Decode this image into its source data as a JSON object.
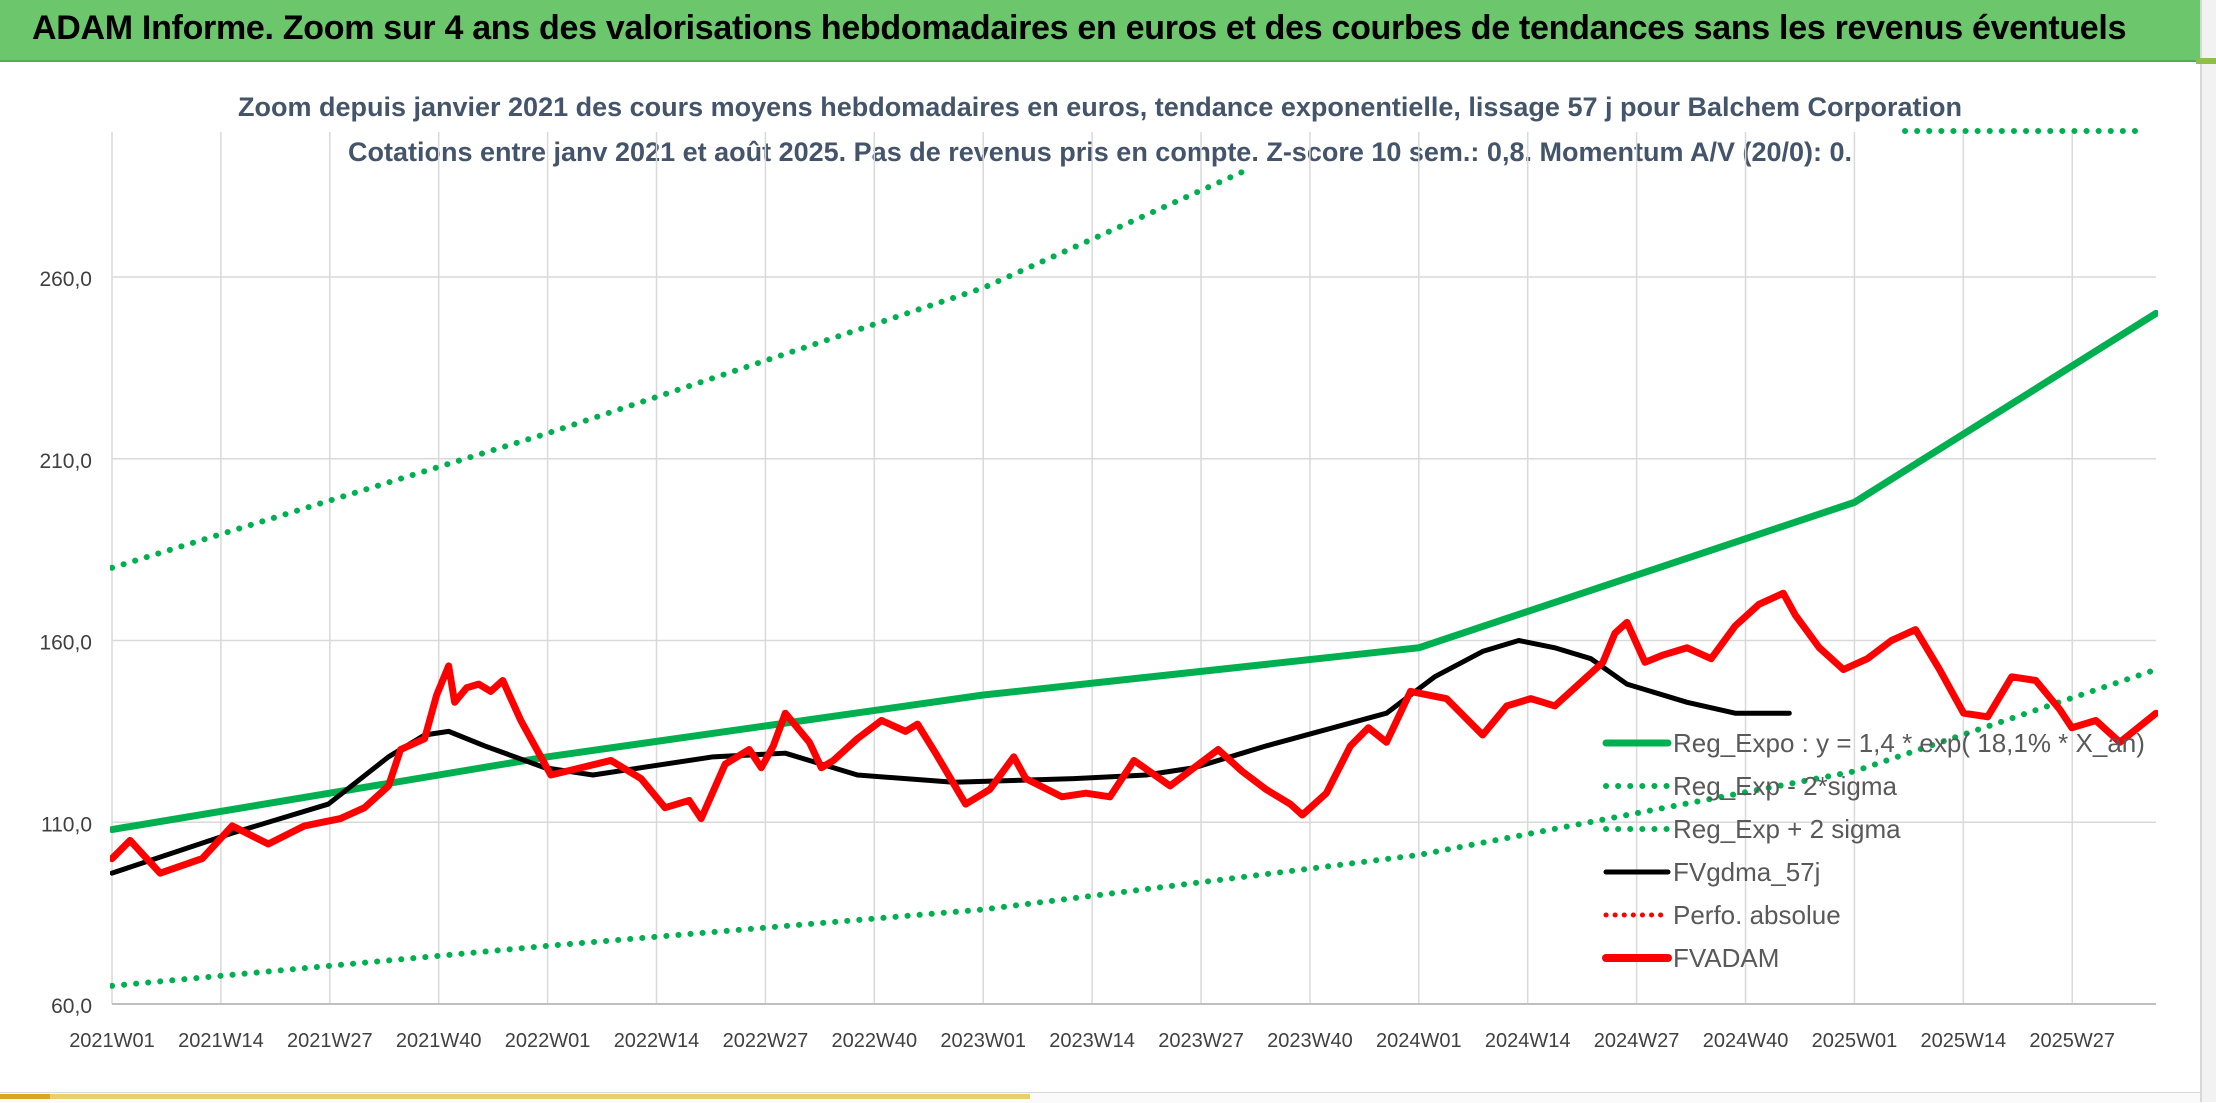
{
  "banner": {
    "title": "ADAM Informe. Zoom sur 4 ans des valorisations hebdomadaires en euros et des courbes de tendances sans les revenus éventuels"
  },
  "colors": {
    "banner": "#6cc66c",
    "trend": "#00b050",
    "smoothed": "#000000",
    "price": "#ff0000",
    "perf": "#ff0000"
  },
  "chart_data": {
    "type": "line",
    "title": "Zoom depuis janvier 2021 des cours moyens hebdomadaires en euros, tendance exponentielle, lissage 57 j pour Balchem Corporation",
    "subtitle": "Cotations entre janv 2021 et août 2025. Pas de revenus pris en compte. Z-score 10 sem.: 0,8. Momentum A/V (20/0): 0.",
    "xlabel": "",
    "ylabel": "",
    "ylim": [
      60,
      280
    ],
    "y_ticks": [
      "60,0",
      "110,0",
      "160,0",
      "210,0",
      "260,0"
    ],
    "x_ticks": [
      "2021W01",
      "2021W14",
      "2021W27",
      "2021W40",
      "2022W01",
      "2022W14",
      "2022W27",
      "2022W40",
      "2023W01",
      "2023W14",
      "2023W27",
      "2023W40",
      "2024W01",
      "2024W14",
      "2024W27",
      "2024W40",
      "2025W01",
      "2025W14",
      "2025W27"
    ],
    "n_weeks": 245,
    "grid": true,
    "legend_position": "right",
    "legend": [
      "Reg_Expo : y = 1,4 * exp( 18,1% *  X_an)",
      "Reg_Exp - 2*sigma",
      "Reg_Exp + 2 sigma",
      "FVgdma_57j",
      "Perfo. absolue",
      "FVADAM"
    ],
    "series": [
      {
        "name": "Reg_Expo : y = 1,4 * exp( 18,1% *  X_an)",
        "style": "solid-green",
        "points": [
          [
            0,
            108
          ],
          [
            52,
            128
          ],
          [
            104,
            145
          ],
          [
            156,
            158
          ],
          [
            208,
            198
          ],
          [
            244,
            250
          ]
        ]
      },
      {
        "name": "Reg_Exp - 2*sigma",
        "style": "dotted-green",
        "points": [
          [
            0,
            65
          ],
          [
            52,
            76
          ],
          [
            104,
            86
          ],
          [
            156,
            101
          ],
          [
            208,
            124
          ],
          [
            244,
            152
          ]
        ]
      },
      {
        "name": "Reg_Exp + 2 sigma",
        "style": "dotted-green",
        "points": [
          [
            0,
            180
          ],
          [
            52,
            217
          ],
          [
            104,
            257
          ],
          [
            136,
            290
          ]
        ]
      },
      {
        "name": "FVgdma_57j",
        "style": "solid-black",
        "points": [
          [
            0,
            96
          ],
          [
            20,
            107
          ],
          [
            36,
            115
          ],
          [
            46,
            128
          ],
          [
            52,
            134
          ],
          [
            56,
            135
          ],
          [
            62,
            131
          ],
          [
            72,
            125
          ],
          [
            80,
            123
          ],
          [
            100,
            128
          ],
          [
            112,
            129
          ],
          [
            118,
            126
          ],
          [
            124,
            123
          ],
          [
            140,
            121
          ],
          [
            160,
            122
          ],
          [
            172,
            123
          ],
          [
            180,
            125
          ],
          [
            188,
            129
          ],
          [
            192,
            131
          ],
          [
            212,
            140
          ],
          [
            220,
            150
          ],
          [
            228,
            157
          ],
          [
            234,
            160
          ],
          [
            240,
            158
          ],
          [
            246,
            155
          ],
          [
            252,
            148
          ],
          [
            262,
            143
          ],
          [
            270,
            140
          ],
          [
            279,
            140
          ]
        ]
      },
      {
        "name": "FVADAM",
        "style": "solid-red",
        "points": [
          [
            0,
            100
          ],
          [
            3,
            105
          ],
          [
            8,
            96
          ],
          [
            15,
            100
          ],
          [
            20,
            109
          ],
          [
            26,
            104
          ],
          [
            32,
            109
          ],
          [
            38,
            111
          ],
          [
            42,
            114
          ],
          [
            46,
            120
          ],
          [
            48,
            130
          ],
          [
            52,
            133
          ],
          [
            54,
            145
          ],
          [
            56,
            153
          ],
          [
            57,
            143
          ],
          [
            59,
            147
          ],
          [
            61,
            148
          ],
          [
            63,
            146
          ],
          [
            65,
            149
          ],
          [
            68,
            138
          ],
          [
            73,
            123
          ],
          [
            78,
            125
          ],
          [
            83,
            127
          ],
          [
            88,
            122
          ],
          [
            92,
            114
          ],
          [
            96,
            116
          ],
          [
            98,
            111
          ],
          [
            102,
            126
          ],
          [
            106,
            130
          ],
          [
            108,
            125
          ],
          [
            110,
            131
          ],
          [
            112,
            140
          ],
          [
            116,
            132
          ],
          [
            118,
            125
          ],
          [
            120,
            127
          ],
          [
            124,
            133
          ],
          [
            128,
            138
          ],
          [
            132,
            135
          ],
          [
            134,
            137
          ],
          [
            137,
            129
          ],
          [
            142,
            115
          ],
          [
            146,
            119
          ],
          [
            150,
            128
          ],
          [
            152,
            122
          ],
          [
            158,
            117
          ],
          [
            162,
            118
          ],
          [
            166,
            117
          ],
          [
            170,
            127
          ],
          [
            176,
            120
          ],
          [
            180,
            125
          ],
          [
            184,
            130
          ],
          [
            188,
            124
          ],
          [
            192,
            119
          ],
          [
            196,
            115
          ],
          [
            198,
            112
          ],
          [
            202,
            118
          ],
          [
            206,
            131
          ],
          [
            209,
            136
          ],
          [
            212,
            132
          ],
          [
            216,
            146
          ],
          [
            222,
            144
          ],
          [
            228,
            134
          ],
          [
            232,
            142
          ],
          [
            236,
            144
          ],
          [
            240,
            142
          ],
          [
            244,
            148
          ],
          [
            248,
            154
          ],
          [
            250,
            162
          ],
          [
            252,
            165
          ],
          [
            255,
            154
          ],
          [
            258,
            156
          ],
          [
            262,
            158
          ],
          [
            266,
            155
          ],
          [
            270,
            164
          ],
          [
            274,
            170
          ],
          [
            278,
            173
          ],
          [
            280,
            167
          ],
          [
            284,
            158
          ],
          [
            288,
            152
          ],
          [
            292,
            155
          ],
          [
            296,
            160
          ],
          [
            300,
            163
          ],
          [
            304,
            152
          ],
          [
            308,
            140
          ],
          [
            312,
            139
          ],
          [
            316,
            150
          ],
          [
            320,
            149
          ],
          [
            324,
            141
          ],
          [
            326,
            136
          ],
          [
            330,
            138
          ],
          [
            334,
            132
          ],
          [
            340,
            140
          ]
        ]
      }
    ]
  }
}
